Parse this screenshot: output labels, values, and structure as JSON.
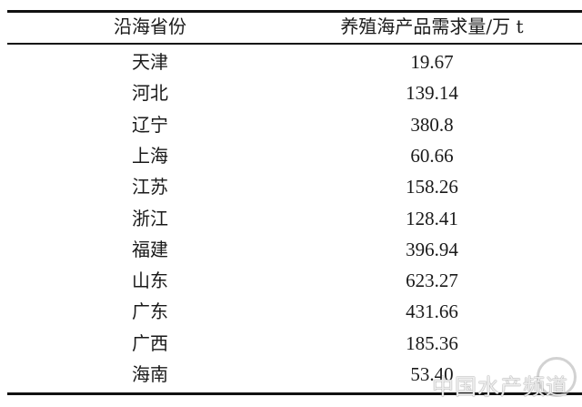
{
  "table": {
    "headers": [
      "沿海省份",
      "养殖海产品需求量/万 t"
    ],
    "rows": [
      [
        "天津",
        "19.67"
      ],
      [
        "河北",
        "139.14"
      ],
      [
        "辽宁",
        "380.8"
      ],
      [
        "上海",
        "60.66"
      ],
      [
        "江苏",
        "158.26"
      ],
      [
        "浙江",
        "128.41"
      ],
      [
        "福建",
        "396.94"
      ],
      [
        "山东",
        "623.27"
      ],
      [
        "广东",
        "431.66"
      ],
      [
        "广西",
        "185.36"
      ],
      [
        "海南",
        "53.40"
      ]
    ]
  },
  "watermark": "中国水产频道"
}
